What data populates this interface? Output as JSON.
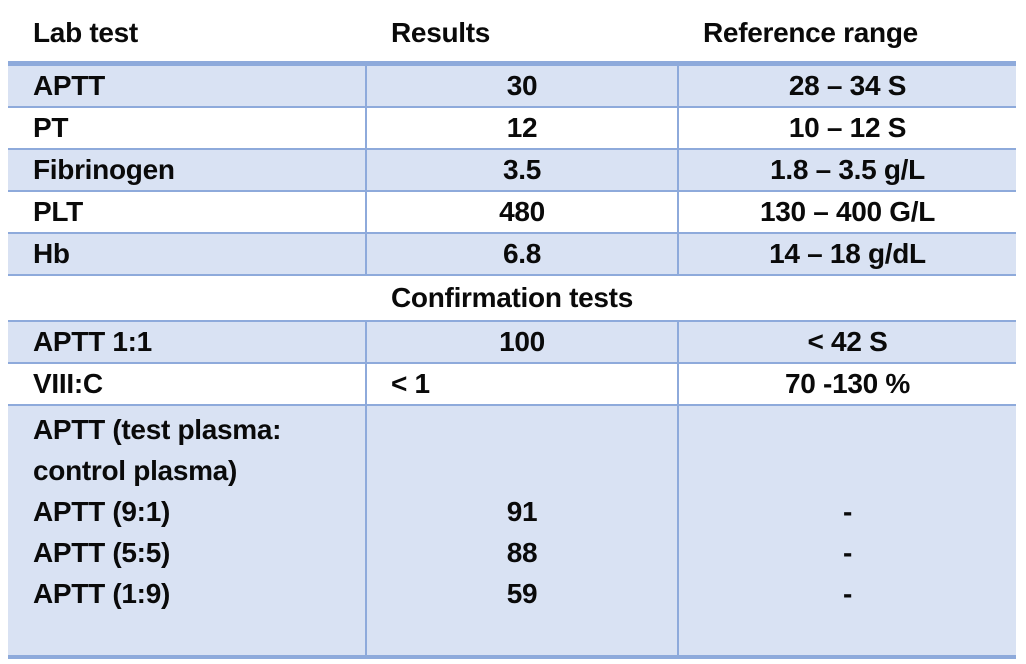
{
  "colors": {
    "band_fill": "#D9E2F3",
    "border": "#8EAADB",
    "text": "#0a0a0a",
    "background": "#ffffff"
  },
  "table": {
    "columns": {
      "lab": "Lab test",
      "result": "Results",
      "range": "Reference range"
    },
    "rows": [
      {
        "lab": "APTT",
        "result": "30",
        "range": "28 – 34 S"
      },
      {
        "lab": "PT",
        "result": "12",
        "range": "10 – 12 S"
      },
      {
        "lab": "Fibrinogen",
        "result": "3.5",
        "range": "1.8 – 3.5 g/L"
      },
      {
        "lab": "PLT",
        "result": "480",
        "range": "130 – 400 G/L"
      },
      {
        "lab": "Hb",
        "result": "6.8",
        "range": "14 – 18 g/dL"
      }
    ],
    "section_title": "Confirmation tests",
    "confirmation_rows": [
      {
        "lab": "APTT 1:1",
        "result": "100",
        "range": "< 42 S"
      },
      {
        "lab": "VIII:C",
        "result": "< 1",
        "range": "70 -130 %"
      }
    ],
    "mixing": {
      "lab": [
        "APTT (test plasma:",
        "control plasma)",
        "APTT (9:1)",
        "APTT (5:5)",
        "APTT (1:9)",
        ""
      ],
      "result": [
        "",
        "",
        "91",
        "88",
        "59",
        ""
      ],
      "range": [
        "",
        "",
        "-",
        "-",
        "-",
        ""
      ]
    }
  },
  "chart_data": {
    "type": "table",
    "title": "",
    "columns": [
      "Lab test",
      "Results",
      "Reference range"
    ],
    "rows": [
      [
        "APTT",
        "30",
        "28 – 34 S"
      ],
      [
        "PT",
        "12",
        "10 – 12 S"
      ],
      [
        "Fibrinogen",
        "3.5",
        "1.8 – 3.5 g/L"
      ],
      [
        "PLT",
        "480",
        "130 – 400 G/L"
      ],
      [
        "Hb",
        "6.8",
        "14 – 18 g/dL"
      ],
      [
        "Confirmation tests",
        "",
        ""
      ],
      [
        "APTT 1:1",
        "100",
        "< 42 S"
      ],
      [
        "VIII:C",
        "< 1",
        "70 -130 %"
      ],
      [
        "APTT (test plasma: control plasma)",
        "",
        ""
      ],
      [
        "APTT (9:1)",
        "91",
        "-"
      ],
      [
        "APTT (5:5)",
        "88",
        "-"
      ],
      [
        "APTT (1:9)",
        "59",
        "-"
      ]
    ]
  }
}
